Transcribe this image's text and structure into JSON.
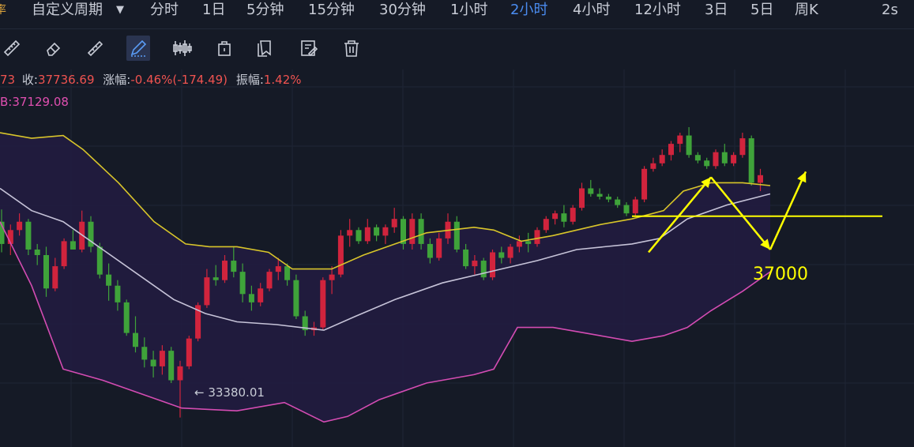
{
  "toolbar": {
    "left_icon_char": "率",
    "custom_period": "自定义周期",
    "timeframes": [
      "分时",
      "1日",
      "5分钟",
      "15分钟",
      "30分钟",
      "1小时",
      "2小时",
      "4小时",
      "12小时",
      "3日",
      "5日",
      "周K"
    ],
    "active_timeframe": "2小时",
    "refresh": "2s"
  },
  "drawing_tools": [
    "ruler-icon",
    "eraser-icon",
    "measure-icon",
    "pen-icon",
    "candle-settings-icon",
    "clipboard-icon",
    "copy-icon",
    "edit-icon",
    "trash-icon"
  ],
  "info": {
    "open_fragment": "73",
    "close_label": "收:",
    "close_value": "37736.69",
    "change_label": "涨幅:",
    "change_value": "-0.46%(-174.49)",
    "amplitude_label": "振幅:",
    "amplitude_value": "1.42%",
    "indicator_fragment": "B:37129.08"
  },
  "colors": {
    "up": "#d1243d",
    "down": "#3fa33a",
    "upper_band": "#d8c52a",
    "middle_band": "#c6c3d8",
    "lower_band": "#d44cb3",
    "band_fill": "#221c42",
    "annotation": "#ffff00",
    "active": "#4a8cf0"
  },
  "annotations": {
    "support_label": "37000",
    "low_label": "← 33380.01"
  },
  "chart_data": {
    "type": "candlestick",
    "ylim": [
      32850,
      39750
    ],
    "support_level": 37000,
    "low_marker": 33380.01,
    "candles": [
      [
        36900,
        37120,
        36350,
        36500
      ],
      [
        36500,
        36850,
        36300,
        36750
      ],
      [
        36750,
        37050,
        36650,
        36900
      ],
      [
        36900,
        36950,
        36300,
        36400
      ],
      [
        36400,
        36500,
        36120,
        36300
      ],
      [
        36300,
        36450,
        35550,
        35700
      ],
      [
        35700,
        36250,
        35650,
        36100
      ],
      [
        36100,
        36600,
        36050,
        36550
      ],
      [
        36550,
        36750,
        36400,
        36400
      ],
      [
        36400,
        37100,
        36350,
        36900
      ],
      [
        36900,
        37000,
        36350,
        36450
      ],
      [
        36450,
        36520,
        35880,
        35950
      ],
      [
        35950,
        36150,
        35480,
        35750
      ],
      [
        35750,
        35850,
        35300,
        35450
      ],
      [
        35450,
        35500,
        34850,
        34900
      ],
      [
        34900,
        35200,
        34550,
        34650
      ],
      [
        34650,
        34820,
        34280,
        34420
      ],
      [
        34420,
        34580,
        34100,
        34300
      ],
      [
        34300,
        34680,
        34150,
        34580
      ],
      [
        34580,
        34650,
        34000,
        34050
      ],
      [
        34050,
        34400,
        33380,
        34300
      ],
      [
        34300,
        34850,
        34250,
        34800
      ],
      [
        34800,
        35450,
        34750,
        35400
      ],
      [
        35400,
        36050,
        35350,
        35900
      ],
      [
        35900,
        36120,
        35750,
        35850
      ],
      [
        35850,
        36300,
        35800,
        36200
      ],
      [
        36200,
        36450,
        35900,
        36000
      ],
      [
        36000,
        36150,
        35450,
        35600
      ],
      [
        35600,
        35750,
        35300,
        35450
      ],
      [
        35450,
        35800,
        35380,
        35700
      ],
      [
        35700,
        36050,
        35650,
        36000
      ],
      [
        36000,
        36250,
        35850,
        36100
      ],
      [
        36100,
        36150,
        35750,
        35850
      ],
      [
        35850,
        35950,
        35150,
        35200
      ],
      [
        35200,
        35300,
        34850,
        34950
      ],
      [
        34950,
        35100,
        34850,
        35000
      ],
      [
        35000,
        35900,
        34950,
        35850
      ],
      [
        35850,
        36100,
        35600,
        35950
      ],
      [
        35950,
        36750,
        35900,
        36650
      ],
      [
        36650,
        36950,
        36450,
        36750
      ],
      [
        36750,
        36800,
        36500,
        36550
      ],
      [
        36550,
        36950,
        36500,
        36800
      ],
      [
        36800,
        36850,
        36550,
        36650
      ],
      [
        36650,
        36850,
        36500,
        36800
      ],
      [
        36800,
        37150,
        36700,
        36950
      ],
      [
        36950,
        37000,
        36400,
        36500
      ],
      [
        36500,
        37050,
        36400,
        36950
      ],
      [
        36950,
        37050,
        36400,
        36500
      ],
      [
        36500,
        36600,
        36150,
        36250
      ],
      [
        36250,
        36700,
        36200,
        36600
      ],
      [
        36600,
        37050,
        36500,
        36900
      ],
      [
        36900,
        37000,
        36350,
        36400
      ],
      [
        36400,
        36500,
        36050,
        36100
      ],
      [
        36100,
        36300,
        35950,
        36200
      ],
      [
        36200,
        36250,
        35850,
        35900
      ],
      [
        35900,
        36400,
        35850,
        36350
      ],
      [
        36350,
        36450,
        36150,
        36250
      ],
      [
        36250,
        36500,
        36150,
        36450
      ],
      [
        36450,
        36650,
        36350,
        36550
      ],
      [
        36550,
        36700,
        36350,
        36500
      ],
      [
        36500,
        36800,
        36450,
        36750
      ],
      [
        36750,
        37000,
        36700,
        36950
      ],
      [
        36950,
        37100,
        36850,
        37050
      ],
      [
        37050,
        37200,
        36800,
        36900
      ],
      [
        36900,
        37200,
        36850,
        37150
      ],
      [
        37150,
        37600,
        37100,
        37500
      ],
      [
        37500,
        37650,
        37350,
        37400
      ],
      [
        37400,
        37500,
        37300,
        37350
      ],
      [
        37350,
        37400,
        37250,
        37300
      ],
      [
        37300,
        37350,
        37150,
        37200
      ],
      [
        37200,
        37250,
        37000,
        37050
      ],
      [
        37050,
        37350,
        37000,
        37300
      ],
      [
        37300,
        37900,
        37250,
        37850
      ],
      [
        37850,
        38050,
        37800,
        37950
      ],
      [
        37950,
        38200,
        37900,
        38100
      ],
      [
        38100,
        38350,
        38000,
        38300
      ],
      [
        38300,
        38500,
        38150,
        38450
      ],
      [
        38450,
        38600,
        38050,
        38100
      ],
      [
        38100,
        38150,
        37950,
        38000
      ],
      [
        38000,
        38050,
        37850,
        37900
      ],
      [
        37900,
        38200,
        37850,
        38150
      ],
      [
        38150,
        38300,
        37900,
        37950
      ],
      [
        37950,
        38150,
        37900,
        38100
      ],
      [
        38100,
        38500,
        38050,
        38400
      ],
      [
        38400,
        38450,
        37550,
        37600
      ],
      [
        37600,
        37850,
        37450,
        37736.69
      ]
    ],
    "upper_band": [
      [
        0,
        38500
      ],
      [
        40,
        38400
      ],
      [
        80,
        38450
      ],
      [
        105,
        38200
      ],
      [
        150,
        37600
      ],
      [
        195,
        36900
      ],
      [
        235,
        36500
      ],
      [
        265,
        36450
      ],
      [
        300,
        36450
      ],
      [
        340,
        36350
      ],
      [
        370,
        36050
      ],
      [
        420,
        36050
      ],
      [
        460,
        36300
      ],
      [
        500,
        36500
      ],
      [
        540,
        36700
      ],
      [
        600,
        36800
      ],
      [
        625,
        36750
      ],
      [
        660,
        36550
      ],
      [
        700,
        36650
      ],
      [
        760,
        36850
      ],
      [
        800,
        36950
      ],
      [
        840,
        37100
      ],
      [
        865,
        37450
      ],
      [
        900,
        37600
      ],
      [
        940,
        37600
      ],
      [
        975,
        37550
      ]
    ],
    "middle_band": [
      [
        0,
        37500
      ],
      [
        40,
        37100
      ],
      [
        80,
        36900
      ],
      [
        130,
        36400
      ],
      [
        180,
        35900
      ],
      [
        220,
        35500
      ],
      [
        260,
        35250
      ],
      [
        300,
        35100
      ],
      [
        350,
        35050
      ],
      [
        410,
        34950
      ],
      [
        450,
        35200
      ],
      [
        500,
        35500
      ],
      [
        560,
        35800
      ],
      [
        620,
        36000
      ],
      [
        680,
        36200
      ],
      [
        730,
        36400
      ],
      [
        800,
        36500
      ],
      [
        835,
        36600
      ],
      [
        870,
        36950
      ],
      [
        920,
        37200
      ],
      [
        975,
        37400
      ]
    ],
    "lower_band": [
      [
        0,
        36900
      ],
      [
        40,
        35750
      ],
      [
        80,
        34250
      ],
      [
        130,
        34050
      ],
      [
        190,
        33750
      ],
      [
        230,
        33550
      ],
      [
        300,
        33500
      ],
      [
        360,
        33650
      ],
      [
        410,
        33300
      ],
      [
        440,
        33400
      ],
      [
        480,
        33700
      ],
      [
        540,
        34000
      ],
      [
        600,
        34150
      ],
      [
        625,
        34250
      ],
      [
        655,
        35000
      ],
      [
        700,
        35000
      ],
      [
        760,
        34850
      ],
      [
        800,
        34750
      ],
      [
        840,
        34850
      ],
      [
        870,
        35000
      ],
      [
        900,
        35300
      ],
      [
        940,
        35650
      ],
      [
        975,
        36000
      ]
    ],
    "arrows": [
      {
        "from": [
          821,
          36350
        ],
        "to": [
          900,
          37700
        ]
      },
      {
        "from": [
          900,
          37700
        ],
        "to": [
          975,
          36400
        ]
      },
      {
        "from": [
          975,
          36400
        ],
        "to": [
          1020,
          37800
        ]
      }
    ],
    "support_line_x": [
      800,
      1117
    ]
  }
}
